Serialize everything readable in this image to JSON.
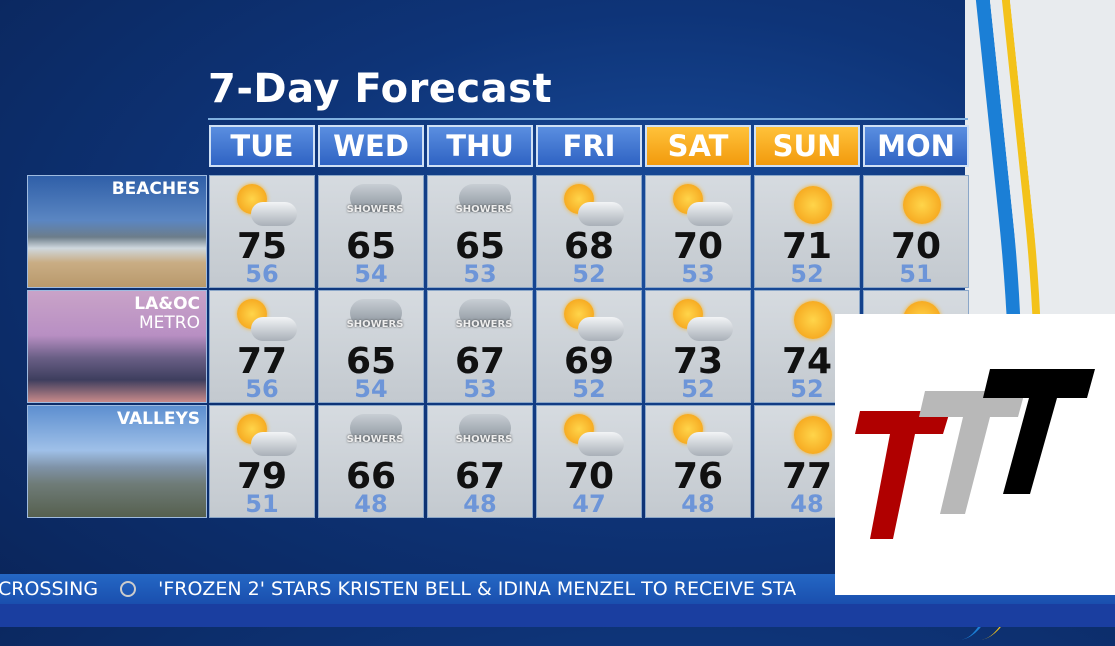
{
  "title": "7-Day Forecast",
  "days": [
    {
      "label": "TUE",
      "weekend": false
    },
    {
      "label": "WED",
      "weekend": false
    },
    {
      "label": "THU",
      "weekend": false
    },
    {
      "label": "FRI",
      "weekend": false
    },
    {
      "label": "SAT",
      "weekend": true
    },
    {
      "label": "SUN",
      "weekend": true
    },
    {
      "label": "MON",
      "weekend": false
    }
  ],
  "regions": [
    {
      "name": "BEACHES",
      "name2": "",
      "forecast": [
        {
          "icon": "partly-cloudy",
          "hi": "75",
          "lo": "56"
        },
        {
          "icon": "showers",
          "text": "SHOWERS",
          "hi": "65",
          "lo": "54"
        },
        {
          "icon": "showers",
          "text": "SHOWERS",
          "hi": "65",
          "lo": "53"
        },
        {
          "icon": "partly-cloudy",
          "hi": "68",
          "lo": "52"
        },
        {
          "icon": "partly-cloudy",
          "hi": "70",
          "lo": "53"
        },
        {
          "icon": "sunny",
          "hi": "71",
          "lo": "52"
        },
        {
          "icon": "sunny",
          "hi": "70",
          "lo": "51"
        }
      ]
    },
    {
      "name": "LA&OC",
      "name2": "METRO",
      "forecast": [
        {
          "icon": "partly-cloudy",
          "hi": "77",
          "lo": "56"
        },
        {
          "icon": "showers",
          "text": "SHOWERS",
          "hi": "65",
          "lo": "54"
        },
        {
          "icon": "showers",
          "text": "SHOWERS",
          "hi": "67",
          "lo": "53"
        },
        {
          "icon": "partly-cloudy",
          "hi": "69",
          "lo": "52"
        },
        {
          "icon": "partly-cloudy",
          "hi": "73",
          "lo": "52"
        },
        {
          "icon": "sunny",
          "hi": "74",
          "lo": "52"
        },
        {
          "icon": "sunny"
        }
      ]
    },
    {
      "name": "VALLEYS",
      "name2": "",
      "forecast": [
        {
          "icon": "partly-cloudy",
          "hi": "79",
          "lo": "51"
        },
        {
          "icon": "showers",
          "text": "SHOWERS",
          "hi": "66",
          "lo": "48"
        },
        {
          "icon": "showers",
          "text": "SHOWERS",
          "hi": "67",
          "lo": "48"
        },
        {
          "icon": "partly-cloudy",
          "hi": "70",
          "lo": "47"
        },
        {
          "icon": "partly-cloudy",
          "hi": "76",
          "lo": "48"
        },
        {
          "icon": "sunny",
          "hi": "77",
          "lo": "48"
        },
        {
          "icon": "sunny"
        }
      ]
    }
  ],
  "ticker": {
    "prev": "CROSSING",
    "headline": "'FROZEN 2' STARS KRISTEN BELL & IDINA MENZEL TO RECEIVE STA"
  },
  "colors": {
    "weekday": "#2f63c3",
    "weekend": "#f29a0d",
    "low_temp": "#6d95d8"
  },
  "logo": {
    "colors": [
      "#b00000",
      "#b8b8b8",
      "#000000"
    ]
  }
}
